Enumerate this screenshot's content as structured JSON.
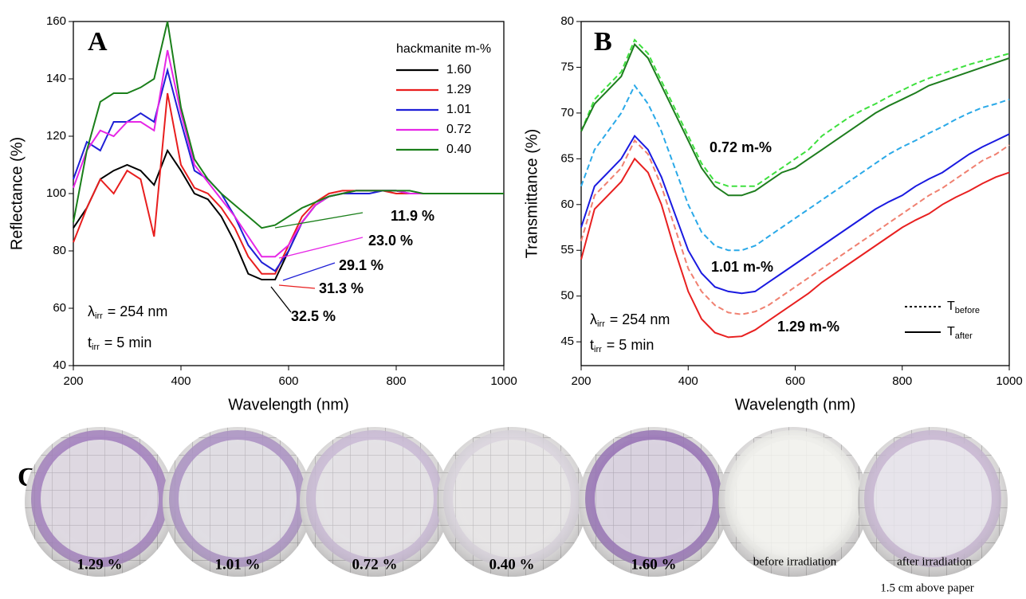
{
  "chart_data": [
    {
      "type": "line",
      "panel": "A",
      "x_label": "Wavelength (nm)",
      "y_label": "Reflectance (%)",
      "xlim": [
        200,
        1000
      ],
      "xticks": [
        200,
        400,
        600,
        800,
        1000
      ],
      "ylim": [
        40,
        160
      ],
      "yticks": [
        40,
        60,
        80,
        100,
        120,
        140,
        160
      ],
      "x": [
        200,
        225,
        250,
        275,
        300,
        325,
        350,
        375,
        400,
        425,
        450,
        475,
        500,
        525,
        550,
        575,
        600,
        625,
        650,
        675,
        700,
        725,
        750,
        775,
        800,
        825,
        850,
        875,
        900,
        925,
        950,
        975,
        1000
      ],
      "legend_title": "hackmanite m-%",
      "series": [
        {
          "name": "1.60",
          "color": "#000000",
          "style": "solid",
          "values": [
            88,
            95,
            105,
            108,
            110,
            108,
            103,
            115,
            108,
            100,
            98,
            92,
            83,
            72,
            70,
            70,
            80,
            90,
            96,
            99,
            100,
            101,
            101,
            101,
            101,
            100,
            100,
            100,
            100,
            100,
            100,
            100,
            100
          ]
        },
        {
          "name": "1.29",
          "color": "#e81e1e",
          "style": "solid",
          "values": [
            83,
            95,
            105,
            100,
            108,
            105,
            85,
            135,
            110,
            102,
            100,
            95,
            88,
            78,
            72,
            72,
            82,
            92,
            97,
            100,
            101,
            101,
            101,
            101,
            100,
            100,
            100,
            100,
            100,
            100,
            100,
            100,
            100
          ]
        },
        {
          "name": "1.01",
          "color": "#1f1fd6",
          "style": "solid",
          "values": [
            105,
            118,
            115,
            125,
            125,
            128,
            125,
            143,
            125,
            108,
            105,
            100,
            92,
            82,
            76,
            73,
            80,
            90,
            96,
            99,
            100,
            100,
            100,
            101,
            101,
            100,
            100,
            100,
            100,
            100,
            100,
            100,
            100
          ]
        },
        {
          "name": "0.72",
          "color": "#e626e6",
          "style": "solid",
          "values": [
            102,
            115,
            122,
            120,
            125,
            125,
            122,
            150,
            128,
            110,
            104,
            98,
            92,
            85,
            78,
            78,
            82,
            90,
            96,
            99,
            100,
            101,
            101,
            101,
            101,
            100,
            100,
            100,
            100,
            100,
            100,
            100,
            100
          ]
        },
        {
          "name": "0.40",
          "color": "#1a7f1a",
          "style": "solid",
          "values": [
            90,
            115,
            132,
            135,
            135,
            137,
            140,
            160,
            130,
            112,
            105,
            100,
            96,
            92,
            88,
            89,
            92,
            95,
            97,
            99,
            100,
            101,
            101,
            101,
            101,
            101,
            100,
            100,
            100,
            100,
            100,
            100,
            100
          ]
        }
      ],
      "annotations": [
        {
          "text": "11.9 %",
          "color": "#1a7f1a"
        },
        {
          "text": "23.0 %",
          "color": "#e626e6"
        },
        {
          "text": "29.1 %",
          "color": "#1f1fd6"
        },
        {
          "text": "31.3 %",
          "color": "#e81e1e"
        },
        {
          "text": "32.5 %",
          "color": "#000000"
        }
      ],
      "conditions": [
        {
          "symbol": "λ",
          "sub": "irr",
          "text": "= 254 nm"
        },
        {
          "symbol": "t",
          "sub": "irr",
          "text": "= 5 min"
        }
      ]
    },
    {
      "type": "line",
      "panel": "B",
      "x_label": "Wavelength (nm)",
      "y_label": "Transmittance (%)",
      "xlim": [
        200,
        1000
      ],
      "xticks": [
        200,
        400,
        600,
        800,
        1000
      ],
      "ylim": [
        42.4,
        80
      ],
      "yticks": [
        45,
        50,
        55,
        60,
        65,
        70,
        75,
        80
      ],
      "x": [
        200,
        225,
        250,
        275,
        300,
        325,
        350,
        375,
        400,
        425,
        450,
        475,
        500,
        525,
        550,
        575,
        600,
        625,
        650,
        675,
        700,
        725,
        750,
        775,
        800,
        825,
        850,
        875,
        900,
        925,
        950,
        975,
        1000
      ],
      "series": [
        {
          "color": "#3ee03e",
          "style": "dashed",
          "values": [
            68,
            71.5,
            73,
            74.5,
            78,
            76.5,
            73.5,
            70.5,
            67.5,
            64.5,
            62.5,
            62,
            62,
            62,
            63,
            64,
            65,
            66,
            67.5,
            68.5,
            69.5,
            70.3,
            71,
            71.8,
            72.5,
            73.2,
            73.8,
            74.3,
            74.8,
            75.3,
            75.7,
            76.1,
            76.5
          ]
        },
        {
          "color": "#1e7d1e",
          "style": "solid",
          "values": [
            68,
            71,
            72.5,
            74,
            77.5,
            76,
            73,
            70,
            67,
            64,
            62,
            61,
            61,
            61.5,
            62.5,
            63.5,
            64,
            65,
            66,
            67,
            68,
            69,
            70,
            70.8,
            71.5,
            72.2,
            73,
            73.5,
            74,
            74.5,
            75,
            75.5,
            76
          ]
        },
        {
          "color": "#2aa9e8",
          "style": "dashed",
          "values": [
            62,
            66,
            68,
            70,
            73,
            71,
            68,
            64,
            60,
            57,
            55.5,
            55,
            55,
            55.5,
            56.5,
            57.5,
            58.5,
            59.5,
            60.5,
            61.5,
            62.5,
            63.5,
            64.5,
            65.5,
            66.3,
            67,
            67.8,
            68.5,
            69.3,
            70,
            70.6,
            71,
            71.5
          ]
        },
        {
          "color": "#1a1ae0",
          "style": "solid",
          "values": [
            57.5,
            62,
            63.5,
            65,
            67.5,
            66,
            63,
            59,
            55,
            52.5,
            51,
            50.5,
            50.3,
            50.5,
            51.5,
            52.5,
            53.5,
            54.5,
            55.5,
            56.5,
            57.5,
            58.5,
            59.5,
            60.3,
            61,
            62,
            62.8,
            63.5,
            64.5,
            65.5,
            66.3,
            67,
            67.7
          ]
        },
        {
          "color": "#f08070",
          "style": "dashed",
          "values": [
            56,
            61,
            62.5,
            64,
            67,
            65.5,
            62,
            57.5,
            53,
            50.5,
            49,
            48.2,
            48,
            48.3,
            49,
            50,
            51,
            52,
            53,
            54,
            55,
            56,
            57,
            58,
            59,
            60,
            61,
            61.8,
            62.8,
            63.8,
            64.8,
            65.5,
            66.5
          ]
        },
        {
          "color": "#e82020",
          "style": "solid",
          "values": [
            54,
            59.5,
            61,
            62.5,
            65,
            63.5,
            60,
            55,
            50.5,
            47.5,
            46,
            45.5,
            45.6,
            46.3,
            47.3,
            48.3,
            49.3,
            50.3,
            51.5,
            52.5,
            53.5,
            54.5,
            55.5,
            56.5,
            57.5,
            58.3,
            59,
            60,
            60.8,
            61.5,
            62.3,
            63,
            63.5
          ]
        }
      ],
      "annotations": [
        {
          "text": "0.72 m-%",
          "color": "#1e7d1e"
        },
        {
          "text": "1.01 m-%",
          "color": "#1a1ae0"
        },
        {
          "text": "1.29 m-%",
          "color": "#e82020"
        }
      ],
      "conditions": [
        {
          "symbol": "λ",
          "sub": "irr",
          "text": "= 254 nm"
        },
        {
          "symbol": "t",
          "sub": "irr",
          "text": "= 5 min"
        }
      ],
      "legend": [
        {
          "symbol": "T",
          "sub": "before",
          "style": "dotted"
        },
        {
          "symbol": "T",
          "sub": "after",
          "style": "solid"
        }
      ]
    }
  ],
  "photos": {
    "panel": "C",
    "items": [
      "1.29 %",
      "1.01 %",
      "0.72 %",
      "0.40 %",
      "1.60 %",
      "before irradiation",
      "after irradiation"
    ],
    "note": "1.5 cm above paper"
  }
}
